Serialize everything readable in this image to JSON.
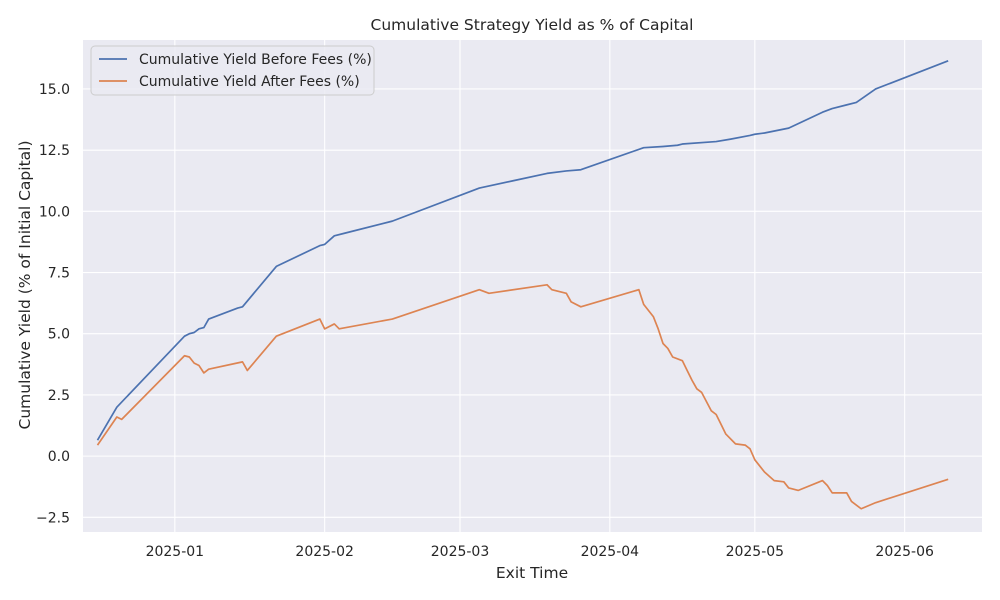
{
  "chart_data": {
    "type": "line",
    "title": "Cumulative Strategy Yield as % of Capital",
    "xlabel": "Exit Time",
    "ylabel": "Cumulative Yield (% of Initial Capital)",
    "x_is_date": true,
    "xlim": [
      "2024-12-13",
      "2025-06-17"
    ],
    "ylim": [
      -3.1,
      17.0
    ],
    "x_ticks": [
      "2025-01-01",
      "2025-02-01",
      "2025-03-01",
      "2025-04-01",
      "2025-05-01",
      "2025-06-01"
    ],
    "x_tick_labels": [
      "2025-01",
      "2025-02",
      "2025-03",
      "2025-04",
      "2025-05",
      "2025-06"
    ],
    "y_ticks": [
      -2.5,
      0.0,
      2.5,
      5.0,
      7.5,
      10.0,
      12.5,
      15.0
    ],
    "y_tick_labels": [
      "−2.5",
      "0.0",
      "2.5",
      "5.0",
      "7.5",
      "10.0",
      "12.5",
      "15.0"
    ],
    "grid": true,
    "legend_position": "upper-left",
    "colors": {
      "background": "#eaeaf2",
      "grid": "#ffffff",
      "before": "#4c72b0",
      "after": "#dd8452"
    },
    "series": [
      {
        "name": "Cumulative Yield Before Fees (%)",
        "color": "#4c72b0",
        "points": [
          [
            "2024-12-16",
            0.65
          ],
          [
            "2024-12-20",
            2.0
          ],
          [
            "2025-01-03",
            4.9
          ],
          [
            "2025-01-04",
            5.0
          ],
          [
            "2025-01-05",
            5.05
          ],
          [
            "2025-01-06",
            5.2
          ],
          [
            "2025-01-07",
            5.25
          ],
          [
            "2025-01-08",
            5.6
          ],
          [
            "2025-01-14",
            6.05
          ],
          [
            "2025-01-15",
            6.1
          ],
          [
            "2025-01-22",
            7.75
          ],
          [
            "2025-01-31",
            8.6
          ],
          [
            "2025-02-01",
            8.65
          ],
          [
            "2025-02-03",
            9.0
          ],
          [
            "2025-02-05",
            9.1
          ],
          [
            "2025-02-15",
            9.6
          ],
          [
            "2025-03-05",
            10.95
          ],
          [
            "2025-03-12",
            11.25
          ],
          [
            "2025-03-19",
            11.55
          ],
          [
            "2025-03-23",
            11.65
          ],
          [
            "2025-03-26",
            11.7
          ],
          [
            "2025-04-08",
            12.6
          ],
          [
            "2025-04-12",
            12.65
          ],
          [
            "2025-04-15",
            12.7
          ],
          [
            "2025-04-16",
            12.75
          ],
          [
            "2025-04-23",
            12.85
          ],
          [
            "2025-04-26",
            12.95
          ],
          [
            "2025-04-30",
            13.1
          ],
          [
            "2025-05-01",
            13.15
          ],
          [
            "2025-05-03",
            13.2
          ],
          [
            "2025-05-08",
            13.4
          ],
          [
            "2025-05-15",
            14.05
          ],
          [
            "2025-05-17",
            14.2
          ],
          [
            "2025-05-20",
            14.35
          ],
          [
            "2025-05-22",
            14.45
          ],
          [
            "2025-05-26",
            15.0
          ],
          [
            "2025-06-10",
            16.15
          ]
        ]
      },
      {
        "name": "Cumulative Yield After Fees (%)",
        "color": "#dd8452",
        "points": [
          [
            "2024-12-16",
            0.45
          ],
          [
            "2024-12-20",
            1.6
          ],
          [
            "2024-12-21",
            1.5
          ],
          [
            "2025-01-03",
            4.1
          ],
          [
            "2025-01-04",
            4.05
          ],
          [
            "2025-01-05",
            3.8
          ],
          [
            "2025-01-06",
            3.7
          ],
          [
            "2025-01-07",
            3.4
          ],
          [
            "2025-01-08",
            3.55
          ],
          [
            "2025-01-15",
            3.85
          ],
          [
            "2025-01-16",
            3.5
          ],
          [
            "2025-01-22",
            4.9
          ],
          [
            "2025-01-31",
            5.6
          ],
          [
            "2025-02-01",
            5.2
          ],
          [
            "2025-02-03",
            5.4
          ],
          [
            "2025-02-04",
            5.2
          ],
          [
            "2025-02-15",
            5.6
          ],
          [
            "2025-03-05",
            6.8
          ],
          [
            "2025-03-07",
            6.65
          ],
          [
            "2025-03-19",
            7.0
          ],
          [
            "2025-03-20",
            6.8
          ],
          [
            "2025-03-23",
            6.65
          ],
          [
            "2025-03-24",
            6.3
          ],
          [
            "2025-03-26",
            6.1
          ],
          [
            "2025-04-07",
            6.8
          ],
          [
            "2025-04-08",
            6.2
          ],
          [
            "2025-04-10",
            5.7
          ],
          [
            "2025-04-11",
            5.2
          ],
          [
            "2025-04-12",
            4.6
          ],
          [
            "2025-04-13",
            4.4
          ],
          [
            "2025-04-14",
            4.05
          ],
          [
            "2025-04-16",
            3.9
          ],
          [
            "2025-04-17",
            3.5
          ],
          [
            "2025-04-18",
            3.1
          ],
          [
            "2025-04-19",
            2.75
          ],
          [
            "2025-04-20",
            2.6
          ],
          [
            "2025-04-22",
            1.85
          ],
          [
            "2025-04-23",
            1.7
          ],
          [
            "2025-04-24",
            1.3
          ],
          [
            "2025-04-25",
            0.9
          ],
          [
            "2025-04-27",
            0.5
          ],
          [
            "2025-04-29",
            0.45
          ],
          [
            "2025-04-30",
            0.3
          ],
          [
            "2025-05-01",
            -0.15
          ],
          [
            "2025-05-03",
            -0.65
          ],
          [
            "2025-05-05",
            -1.0
          ],
          [
            "2025-05-07",
            -1.05
          ],
          [
            "2025-05-08",
            -1.3
          ],
          [
            "2025-05-10",
            -1.4
          ],
          [
            "2025-05-15",
            -1.0
          ],
          [
            "2025-05-16",
            -1.2
          ],
          [
            "2025-05-17",
            -1.5
          ],
          [
            "2025-05-20",
            -1.5
          ],
          [
            "2025-05-21",
            -1.85
          ],
          [
            "2025-05-23",
            -2.15
          ],
          [
            "2025-05-26",
            -1.9
          ],
          [
            "2025-06-10",
            -0.95
          ]
        ]
      }
    ]
  }
}
